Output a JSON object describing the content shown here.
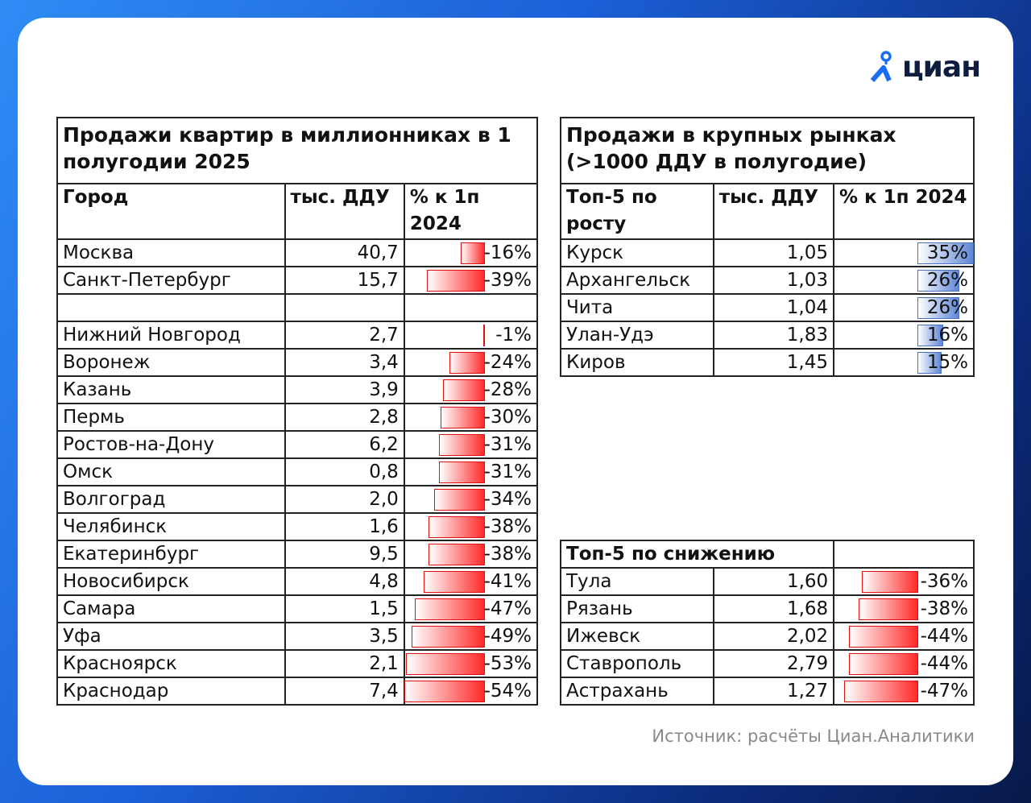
{
  "logo": {
    "text": "циан",
    "brand_color": "#1a6ef5"
  },
  "source": "Источник: расчёты Циан.Аналитики",
  "chart_data": [
    {
      "type": "table",
      "title": "Продажи квартир в миллионниках в 1 полугодии 2025",
      "columns": [
        "Город",
        "тыс. ДДУ",
        "% к 1п 2024"
      ],
      "rows": [
        {
          "city": "Москва",
          "value": "40,7",
          "pct": "-16%",
          "p": -16
        },
        {
          "city": "Санкт-Петербург",
          "value": "15,7",
          "pct": "-39%",
          "p": -39
        },
        {
          "city": "",
          "value": "",
          "pct": "",
          "p": 0
        },
        {
          "city": "Нижний Новгород",
          "value": "2,7",
          "pct": "-1%",
          "p": -1
        },
        {
          "city": "Воронеж",
          "value": "3,4",
          "pct": "-24%",
          "p": -24
        },
        {
          "city": "Казань",
          "value": "3,9",
          "pct": "-28%",
          "p": -28
        },
        {
          "city": "Пермь",
          "value": "2,8",
          "pct": "-30%",
          "p": -30
        },
        {
          "city": "Ростов-на-Дону",
          "value": "6,2",
          "pct": "-31%",
          "p": -31
        },
        {
          "city": "Омск",
          "value": "0,8",
          "pct": "-31%",
          "p": -31
        },
        {
          "city": "Волгоград",
          "value": "2,0",
          "pct": "-34%",
          "p": -34
        },
        {
          "city": "Челябинск",
          "value": "1,6",
          "pct": "-38%",
          "p": -38
        },
        {
          "city": "Екатеринбург",
          "value": "9,5",
          "pct": "-38%",
          "p": -38
        },
        {
          "city": "Новосибирск",
          "value": "4,8",
          "pct": "-41%",
          "p": -41
        },
        {
          "city": "Самара",
          "value": "1,5",
          "pct": "-47%",
          "p": -47
        },
        {
          "city": "Уфа",
          "value": "3,5",
          "pct": "-49%",
          "p": -49
        },
        {
          "city": "Красноярск",
          "value": "2,1",
          "pct": "-53%",
          "p": -53
        },
        {
          "city": "Краснодар",
          "value": "7,4",
          "pct": "-54%",
          "p": -54
        }
      ]
    },
    {
      "type": "table",
      "title": "Продажи в крупных рынках (>1000 ДДУ в полугодие)",
      "columns": [
        "Топ-5 по росту",
        "тыс. ДДУ",
        "% к 1п 2024"
      ],
      "rows": [
        {
          "city": "Курск",
          "value": "1,05",
          "pct": "35%",
          "p": 35
        },
        {
          "city": "Архангельск",
          "value": "1,03",
          "pct": "26%",
          "p": 26
        },
        {
          "city": "Чита",
          "value": "1,04",
          "pct": "26%",
          "p": 26
        },
        {
          "city": "Улан-Удэ",
          "value": "1,83",
          "pct": "16%",
          "p": 16
        },
        {
          "city": "Киров",
          "value": "1,45",
          "pct": "15%",
          "p": 15
        }
      ]
    },
    {
      "type": "table",
      "title": "Топ-5 по снижению",
      "rows": [
        {
          "city": "Тула",
          "value": "1,60",
          "pct": "-36%",
          "p": -36
        },
        {
          "city": "Рязань",
          "value": "1,68",
          "pct": "-38%",
          "p": -38
        },
        {
          "city": "Ижевск",
          "value": "2,02",
          "pct": "-44%",
          "p": -44
        },
        {
          "city": "Ставрополь",
          "value": "2,79",
          "pct": "-44%",
          "p": -44
        },
        {
          "city": "Астрахань",
          "value": "1,27",
          "pct": "-47%",
          "p": -47
        }
      ]
    }
  ]
}
